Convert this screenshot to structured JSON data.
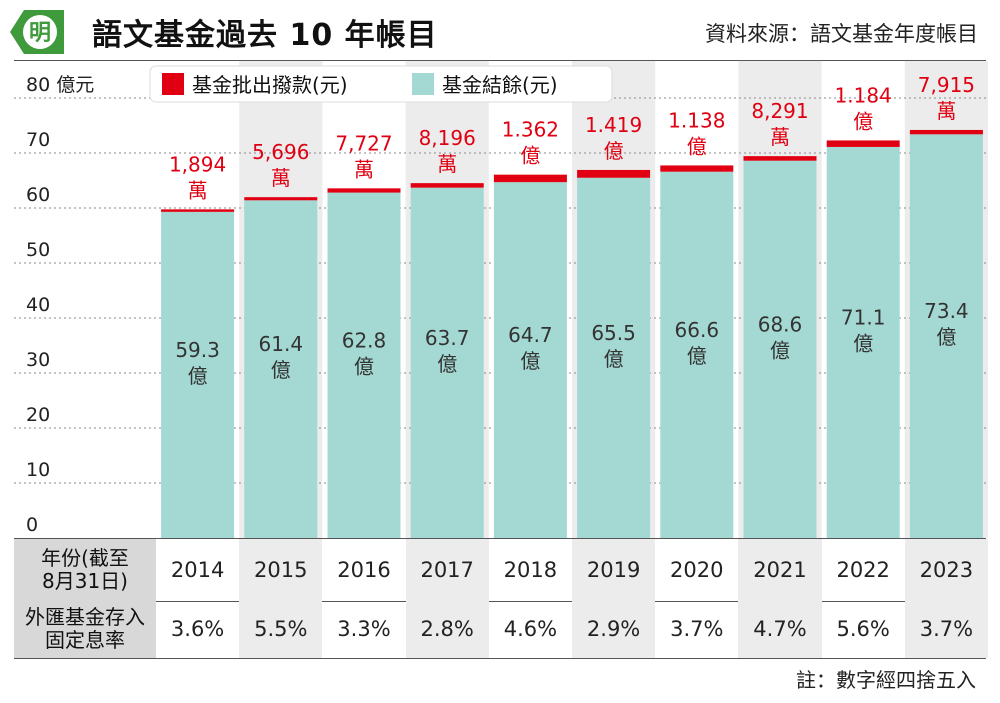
{
  "header": {
    "logo_text": "明",
    "title": "語文基金過去 10 年帳目",
    "source": "資料來源：語文基金年度帳目"
  },
  "colors": {
    "balance": "#a4d8d3",
    "disbursement": "#e00012",
    "column_shade": "#ececec",
    "logo_green": "#3f9a3c"
  },
  "legend": {
    "disbursement": "基金批出撥款(元)",
    "balance": "基金結餘(元)"
  },
  "chart_data": {
    "type": "bar",
    "stacked": true,
    "categories": [
      "2014",
      "2015",
      "2016",
      "2017",
      "2018",
      "2019",
      "2020",
      "2021",
      "2022",
      "2023"
    ],
    "series": [
      {
        "name": "基金結餘(元)",
        "values": [
          59.3,
          61.4,
          62.8,
          63.7,
          64.7,
          65.5,
          66.6,
          68.6,
          71.1,
          73.4
        ]
      },
      {
        "name": "基金批出撥款(元)",
        "values": [
          0.1894,
          0.5696,
          0.7727,
          0.8196,
          1.362,
          1.419,
          1.138,
          0.8291,
          1.184,
          0.7915
        ]
      }
    ],
    "balance_labels": [
      [
        "59.3",
        "億"
      ],
      [
        "61.4",
        "億"
      ],
      [
        "62.8",
        "億"
      ],
      [
        "63.7",
        "億"
      ],
      [
        "64.7",
        "億"
      ],
      [
        "65.5",
        "億"
      ],
      [
        "66.6",
        "億"
      ],
      [
        "68.6",
        "億"
      ],
      [
        "71.1",
        "億"
      ],
      [
        "73.4",
        "億"
      ]
    ],
    "disbursement_labels": [
      [
        "1,894",
        "萬"
      ],
      [
        "5,696",
        "萬"
      ],
      [
        "7,727",
        "萬"
      ],
      [
        "8,196",
        "萬"
      ],
      [
        "1.362",
        "億"
      ],
      [
        "1.419",
        "億"
      ],
      [
        "1.138",
        "億"
      ],
      [
        "8,291",
        "萬"
      ],
      [
        "1.184",
        "億"
      ],
      [
        "7,915",
        "萬"
      ]
    ],
    "yticks": [
      "0",
      "10",
      "20",
      "30",
      "40",
      "50",
      "60",
      "70",
      "80 億元"
    ],
    "ylim": [
      0,
      80
    ],
    "grid": true,
    "legend_position": "top"
  },
  "table": {
    "year_header": [
      "年份(截至",
      "8月31日)"
    ],
    "rate_header": [
      "外匯基金存入",
      "固定息率"
    ],
    "years": [
      "2014",
      "2015",
      "2016",
      "2017",
      "2018",
      "2019",
      "2020",
      "2021",
      "2022",
      "2023"
    ],
    "rates": [
      "3.6%",
      "5.5%",
      "3.3%",
      "2.8%",
      "4.6%",
      "2.9%",
      "3.7%",
      "4.7%",
      "5.6%",
      "3.7%"
    ]
  },
  "note": "註：數字經四捨五入"
}
